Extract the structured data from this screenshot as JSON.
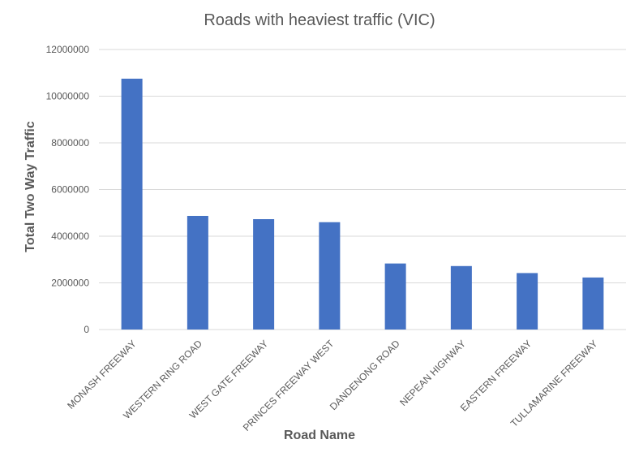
{
  "chart_data": {
    "type": "bar",
    "title": "Roads with heaviest traffic (VIC)",
    "xlabel": "Road Name",
    "ylabel": "Total Two Way Traffic",
    "categories": [
      "MONASH FREEWAY",
      "WESTERN RING ROAD",
      "WEST GATE FREEWAY",
      "PRINCES FREEWAY WEST",
      "DANDENONG ROAD",
      "NEPEAN HIGHWAY",
      "EASTERN FREEWAY",
      "TULLAMARINE FREEWAY"
    ],
    "values": [
      10750000,
      4870000,
      4730000,
      4600000,
      2830000,
      2720000,
      2420000,
      2230000
    ],
    "ylim": [
      0,
      12000000
    ],
    "yticks": [
      "0",
      "2000000",
      "4000000",
      "6000000",
      "8000000",
      "10000000",
      "12000000"
    ],
    "grid": true,
    "legend": "none",
    "colors": {
      "bar": "#4472C4",
      "grid": "#D9D9D9",
      "text": "#595959"
    }
  }
}
